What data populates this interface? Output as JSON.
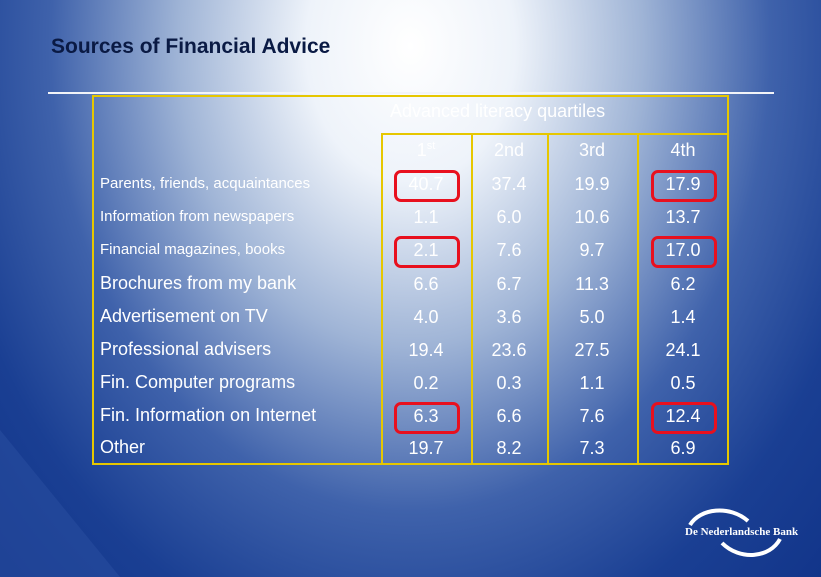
{
  "slide": {
    "title": "Sources of Financial Advice",
    "header": "Advanced literacy quartiles",
    "columns": [
      "1st",
      "2nd",
      "3rd",
      "4th"
    ],
    "rows": [
      {
        "label": "Parents, friends, acquaintances",
        "values": [
          "40.7",
          "37.4",
          "19.9",
          "17.9"
        ]
      },
      {
        "label": "Information from newspapers",
        "values": [
          "1.1",
          "6.0",
          "10.6",
          "13.7"
        ]
      },
      {
        "label": "Financial magazines, books",
        "values": [
          "2.1",
          "7.6",
          "9.7",
          "17.0"
        ]
      },
      {
        "label": "Brochures from my bank",
        "values": [
          "6.6",
          "6.7",
          "11.3",
          "6.2"
        ]
      },
      {
        "label": "Advertisement on TV",
        "values": [
          "4.0",
          "3.6",
          "5.0",
          "1.4"
        ]
      },
      {
        "label": "Professional advisers",
        "values": [
          "19.4",
          "23.6",
          "27.5",
          "24.1"
        ]
      },
      {
        "label": "Fin. Computer programs",
        "values": [
          "0.2",
          "0.3",
          "1.1",
          "0.5"
        ]
      },
      {
        "label": "Fin. Information on Internet",
        "values": [
          "6.3",
          "6.6",
          "7.6",
          "12.4"
        ]
      },
      {
        "label": "Other",
        "values": [
          "19.7",
          "8.2",
          "7.3",
          "6.9"
        ]
      }
    ],
    "highlighted_cells": [
      {
        "row": 0,
        "col": 0
      },
      {
        "row": 0,
        "col": 3
      },
      {
        "row": 2,
        "col": 0
      },
      {
        "row": 2,
        "col": 3
      },
      {
        "row": 7,
        "col": 0
      },
      {
        "row": 7,
        "col": 3
      }
    ],
    "logo_text": "De Nederlandsche Bank",
    "colors": {
      "grid": "#e6c700",
      "highlight": "#e8101e",
      "text": "#ffffff",
      "title": "#0a1a44"
    }
  }
}
